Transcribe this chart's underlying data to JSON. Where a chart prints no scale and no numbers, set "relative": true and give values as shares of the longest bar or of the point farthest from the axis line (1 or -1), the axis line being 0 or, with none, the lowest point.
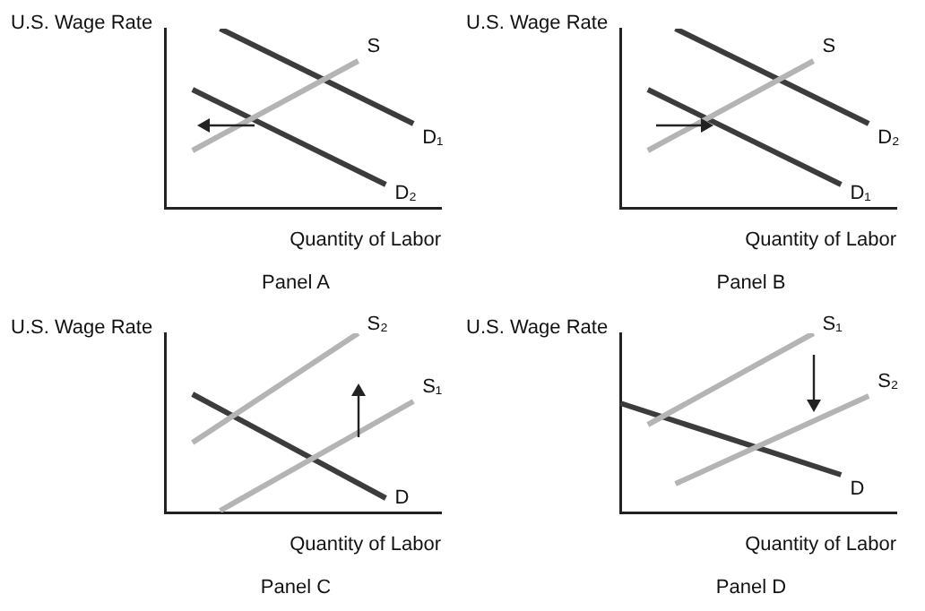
{
  "chart_data": [
    {
      "type": "line",
      "title": "Panel A",
      "xlabel": "Quantity of Labor",
      "ylabel": "U.S. Wage Rate",
      "relative": true,
      "legend": false,
      "grid": false,
      "marker": "none",
      "categories": [
        null,
        null,
        null,
        null,
        null,
        null,
        null,
        null,
        null,
        null,
        null
      ],
      "series": [
        {
          "name": "S",
          "color": "#b4b4b4",
          "values": [
            null,
            0.32,
            null,
            null,
            null,
            null,
            null,
            0.82,
            null,
            null,
            null
          ]
        },
        {
          "name": "D₁",
          "color": "#3c3c3c",
          "values": [
            null,
            null,
            1,
            null,
            null,
            null,
            null,
            null,
            null,
            0.47,
            null
          ]
        },
        {
          "name": "D₂",
          "color": "#3c3c3c",
          "values": [
            null,
            0.66,
            null,
            null,
            null,
            null,
            null,
            null,
            0.13,
            null,
            null
          ]
        }
      ]
    },
    {
      "type": "line",
      "title": "Panel B",
      "xlabel": "Quantity of Labor",
      "ylabel": "U.S. Wage Rate",
      "relative": true,
      "legend": false,
      "grid": false,
      "marker": "none",
      "categories": [
        null,
        null,
        null,
        null,
        null,
        null,
        null,
        null,
        null,
        null,
        null
      ],
      "series": [
        {
          "name": "S",
          "color": "#b4b4b4",
          "values": [
            null,
            0.32,
            null,
            null,
            null,
            null,
            null,
            0.82,
            null,
            null,
            null
          ]
        },
        {
          "name": "D₂",
          "color": "#3c3c3c",
          "values": [
            null,
            null,
            1,
            null,
            null,
            null,
            null,
            null,
            null,
            0.47,
            null
          ]
        },
        {
          "name": "D₁",
          "color": "#3c3c3c",
          "values": [
            null,
            0.66,
            null,
            null,
            null,
            null,
            null,
            null,
            0.13,
            null,
            null
          ]
        }
      ]
    },
    {
      "type": "line",
      "title": "Panel C",
      "xlabel": "Quantity of Labor",
      "ylabel": "U.S. Wage Rate",
      "relative": true,
      "legend": false,
      "grid": false,
      "marker": "none",
      "categories": [
        null,
        null,
        null,
        null,
        null,
        null,
        null,
        null,
        null,
        null,
        null
      ],
      "series": [
        {
          "name": "S₂",
          "color": "#b4b4b4",
          "values": [
            null,
            0.39,
            null,
            null,
            null,
            null,
            null,
            1,
            null,
            null,
            null
          ]
        },
        {
          "name": "S₁",
          "color": "#b4b4b4",
          "values": [
            null,
            null,
            0.01,
            null,
            null,
            null,
            null,
            null,
            null,
            0.62,
            null
          ]
        },
        {
          "name": "D",
          "color": "#3c3c3c",
          "values": [
            null,
            0.66,
            null,
            null,
            null,
            null,
            null,
            null,
            0.08,
            null,
            null
          ]
        }
      ]
    },
    {
      "type": "line",
      "title": "Panel D",
      "xlabel": "Quantity of Labor",
      "ylabel": "U.S. Wage Rate",
      "relative": true,
      "legend": false,
      "grid": false,
      "marker": "none",
      "categories": [
        null,
        null,
        null,
        null,
        null,
        null,
        null,
        null,
        null,
        null,
        null
      ],
      "series": [
        {
          "name": "S₁",
          "color": "#b4b4b4",
          "values": [
            null,
            0.49,
            null,
            null,
            null,
            null,
            null,
            1,
            null,
            null,
            null
          ]
        },
        {
          "name": "S₂",
          "color": "#b4b4b4",
          "values": [
            null,
            null,
            0.16,
            null,
            null,
            null,
            null,
            null,
            null,
            0.65,
            null
          ]
        },
        {
          "name": "D",
          "color": "#3c3c3c",
          "values": [
            0.61,
            null,
            null,
            null,
            null,
            null,
            null,
            null,
            0.21,
            null,
            null
          ]
        }
      ]
    }
  ]
}
